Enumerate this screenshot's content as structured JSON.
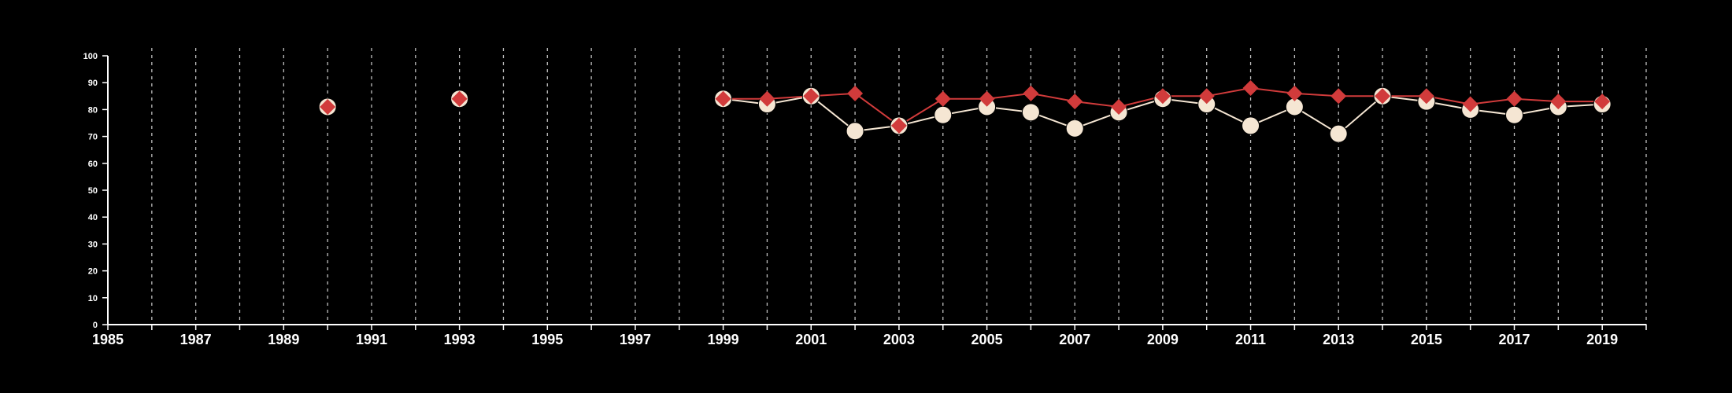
{
  "chart_data": {
    "type": "line",
    "xlim": [
      1985,
      2020
    ],
    "ylim": [
      0,
      100
    ],
    "x_ticks": [
      1985,
      1987,
      1989,
      1991,
      1993,
      1995,
      1997,
      1999,
      2001,
      2003,
      2005,
      2007,
      2009,
      2011,
      2013,
      2015,
      2017,
      2019
    ],
    "y_ticks": [
      0,
      10,
      20,
      30,
      40,
      50,
      60,
      70,
      80,
      90,
      100
    ],
    "grid": "vertical dashed lines at each year",
    "series": [
      {
        "color": "#f5e6d3",
        "marker": "circle",
        "points": [
          [
            1990,
            81
          ],
          [
            1993,
            84
          ],
          [
            1999,
            84
          ],
          [
            2000,
            82
          ],
          [
            2001,
            85
          ],
          [
            2002,
            72
          ],
          [
            2003,
            74
          ],
          [
            2004,
            78
          ],
          [
            2005,
            81
          ],
          [
            2006,
            79
          ],
          [
            2007,
            73
          ],
          [
            2008,
            79
          ],
          [
            2009,
            84
          ],
          [
            2010,
            82
          ],
          [
            2011,
            74
          ],
          [
            2012,
            81
          ],
          [
            2013,
            71
          ],
          [
            2014,
            85
          ],
          [
            2015,
            83
          ],
          [
            2016,
            80
          ],
          [
            2017,
            78
          ],
          [
            2018,
            81
          ],
          [
            2019,
            82
          ]
        ]
      },
      {
        "color": "#d13b3b",
        "marker": "diamond",
        "points": [
          [
            1990,
            81
          ],
          [
            1993,
            84
          ],
          [
            1999,
            84
          ],
          [
            2000,
            84
          ],
          [
            2001,
            85
          ],
          [
            2002,
            86
          ],
          [
            2003,
            74
          ],
          [
            2004,
            84
          ],
          [
            2005,
            84
          ],
          [
            2006,
            86
          ],
          [
            2007,
            83
          ],
          [
            2008,
            81
          ],
          [
            2009,
            85
          ],
          [
            2010,
            85
          ],
          [
            2011,
            88
          ],
          [
            2012,
            86
          ],
          [
            2013,
            85
          ],
          [
            2014,
            85
          ],
          [
            2015,
            85
          ],
          [
            2016,
            82
          ],
          [
            2017,
            84
          ],
          [
            2018,
            83
          ],
          [
            2019,
            83
          ]
        ]
      }
    ]
  }
}
